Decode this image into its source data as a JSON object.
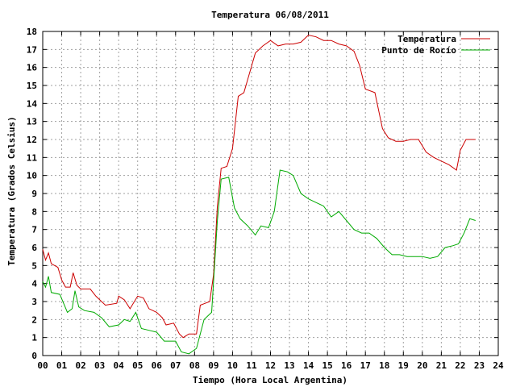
{
  "chart_data": {
    "type": "line",
    "title": "Temperatura 06/08/2011",
    "xlabel": "Tiempo (Hora Local Argentina)",
    "ylabel": "Temperatura (Grados Celsius)",
    "xlim": [
      0,
      24
    ],
    "ylim": [
      0,
      18
    ],
    "x_ticks": [
      "00",
      "01",
      "02",
      "03",
      "04",
      "05",
      "06",
      "07",
      "08",
      "09",
      "10",
      "11",
      "12",
      "13",
      "14",
      "15",
      "16",
      "17",
      "18",
      "19",
      "20",
      "21",
      "22",
      "23",
      "24"
    ],
    "y_ticks": [
      "0",
      "1",
      "2",
      "3",
      "4",
      "5",
      "6",
      "7",
      "8",
      "9",
      "10",
      "11",
      "12",
      "13",
      "14",
      "15",
      "16",
      "17",
      "18"
    ],
    "grid": true,
    "legend_position": "top-right",
    "series": [
      {
        "name": "Temperatura",
        "color": "#cc0000",
        "points": [
          [
            0.0,
            5.9
          ],
          [
            0.15,
            5.3
          ],
          [
            0.3,
            5.7
          ],
          [
            0.45,
            5.1
          ],
          [
            0.8,
            4.9
          ],
          [
            1.0,
            4.2
          ],
          [
            1.2,
            3.8
          ],
          [
            1.45,
            3.8
          ],
          [
            1.6,
            4.6
          ],
          [
            1.8,
            3.9
          ],
          [
            2.0,
            3.7
          ],
          [
            2.5,
            3.7
          ],
          [
            2.8,
            3.3
          ],
          [
            3.3,
            2.8
          ],
          [
            3.9,
            2.9
          ],
          [
            4.0,
            3.3
          ],
          [
            4.3,
            3.1
          ],
          [
            4.6,
            2.6
          ],
          [
            5.0,
            3.3
          ],
          [
            5.3,
            3.2
          ],
          [
            5.6,
            2.6
          ],
          [
            6.0,
            2.4
          ],
          [
            6.3,
            2.1
          ],
          [
            6.5,
            1.7
          ],
          [
            6.9,
            1.8
          ],
          [
            7.2,
            1.2
          ],
          [
            7.4,
            1.0
          ],
          [
            7.7,
            1.2
          ],
          [
            8.1,
            1.2
          ],
          [
            8.3,
            2.8
          ],
          [
            8.8,
            3.0
          ],
          [
            9.0,
            4.5
          ],
          [
            9.2,
            8.3
          ],
          [
            9.4,
            10.4
          ],
          [
            9.7,
            10.5
          ],
          [
            10.0,
            11.5
          ],
          [
            10.3,
            14.4
          ],
          [
            10.6,
            14.6
          ],
          [
            10.9,
            15.7
          ],
          [
            11.2,
            16.8
          ],
          [
            11.6,
            17.2
          ],
          [
            12.0,
            17.5
          ],
          [
            12.4,
            17.2
          ],
          [
            12.8,
            17.3
          ],
          [
            13.2,
            17.3
          ],
          [
            13.6,
            17.4
          ],
          [
            14.0,
            17.8
          ],
          [
            14.4,
            17.7
          ],
          [
            14.8,
            17.5
          ],
          [
            15.2,
            17.5
          ],
          [
            15.6,
            17.3
          ],
          [
            16.0,
            17.2
          ],
          [
            16.4,
            16.9
          ],
          [
            16.7,
            16.1
          ],
          [
            17.0,
            14.8
          ],
          [
            17.5,
            14.6
          ],
          [
            17.9,
            12.6
          ],
          [
            18.2,
            12.1
          ],
          [
            18.6,
            11.9
          ],
          [
            19.0,
            11.9
          ],
          [
            19.4,
            12.0
          ],
          [
            19.8,
            12.0
          ],
          [
            20.2,
            11.3
          ],
          [
            20.6,
            11.0
          ],
          [
            21.0,
            10.8
          ],
          [
            21.4,
            10.6
          ],
          [
            21.8,
            10.3
          ],
          [
            22.0,
            11.4
          ],
          [
            22.3,
            12.0
          ],
          [
            22.8,
            12.0
          ]
        ]
      },
      {
        "name": "Punto de Rocío",
        "color": "#00aa00",
        "points": [
          [
            0.0,
            4.1
          ],
          [
            0.15,
            3.8
          ],
          [
            0.3,
            4.4
          ],
          [
            0.45,
            3.5
          ],
          [
            0.9,
            3.4
          ],
          [
            1.1,
            2.9
          ],
          [
            1.3,
            2.4
          ],
          [
            1.55,
            2.6
          ],
          [
            1.7,
            3.6
          ],
          [
            1.9,
            2.7
          ],
          [
            2.2,
            2.5
          ],
          [
            2.7,
            2.4
          ],
          [
            3.1,
            2.1
          ],
          [
            3.5,
            1.6
          ],
          [
            4.0,
            1.7
          ],
          [
            4.3,
            2.0
          ],
          [
            4.6,
            1.9
          ],
          [
            4.9,
            2.4
          ],
          [
            5.2,
            1.5
          ],
          [
            5.6,
            1.4
          ],
          [
            6.0,
            1.3
          ],
          [
            6.4,
            0.8
          ],
          [
            7.0,
            0.8
          ],
          [
            7.3,
            0.2
          ],
          [
            7.7,
            0.1
          ],
          [
            8.1,
            0.4
          ],
          [
            8.5,
            2.0
          ],
          [
            8.9,
            2.4
          ],
          [
            9.2,
            7.5
          ],
          [
            9.4,
            9.8
          ],
          [
            9.8,
            9.9
          ],
          [
            10.1,
            8.2
          ],
          [
            10.4,
            7.6
          ],
          [
            10.8,
            7.2
          ],
          [
            11.2,
            6.7
          ],
          [
            11.5,
            7.2
          ],
          [
            11.9,
            7.1
          ],
          [
            12.2,
            8.0
          ],
          [
            12.5,
            10.3
          ],
          [
            12.9,
            10.2
          ],
          [
            13.2,
            10.0
          ],
          [
            13.6,
            9.0
          ],
          [
            14.0,
            8.7
          ],
          [
            14.4,
            8.5
          ],
          [
            14.8,
            8.3
          ],
          [
            15.2,
            7.7
          ],
          [
            15.6,
            8.0
          ],
          [
            16.0,
            7.5
          ],
          [
            16.4,
            7.0
          ],
          [
            16.8,
            6.8
          ],
          [
            17.2,
            6.8
          ],
          [
            17.6,
            6.5
          ],
          [
            18.0,
            6.0
          ],
          [
            18.4,
            5.6
          ],
          [
            18.8,
            5.6
          ],
          [
            19.2,
            5.5
          ],
          [
            19.6,
            5.5
          ],
          [
            20.0,
            5.5
          ],
          [
            20.4,
            5.4
          ],
          [
            20.8,
            5.5
          ],
          [
            21.2,
            6.0
          ],
          [
            21.6,
            6.1
          ],
          [
            21.9,
            6.2
          ],
          [
            22.2,
            6.8
          ],
          [
            22.5,
            7.6
          ],
          [
            22.8,
            7.5
          ]
        ]
      }
    ]
  }
}
